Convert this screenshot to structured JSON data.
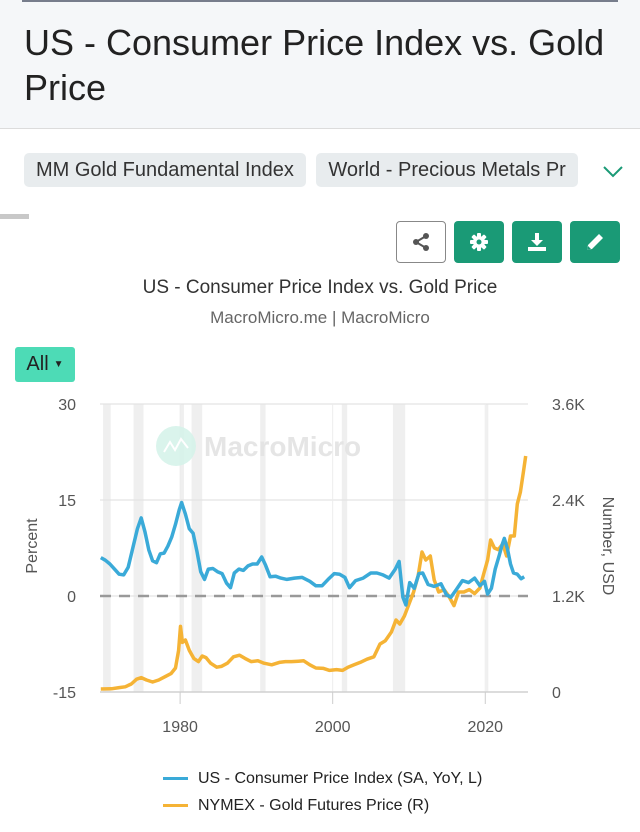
{
  "header": {
    "title": "US - Consumer Price Index vs. Gold Price"
  },
  "tags": [
    {
      "label": "MM Gold Fundamental Index"
    },
    {
      "label": "World - Precious Metals Pr"
    }
  ],
  "toolbar": {
    "share_icon": "share-icon",
    "settings_icon": "gear-icon",
    "download_icon": "download-icon",
    "edit_icon": "pencil-icon"
  },
  "colors": {
    "accent": "#1a9a76",
    "range_button": "#4ddbb6",
    "cpi_line": "#3aaad8",
    "gold_line": "#f5b335"
  },
  "range_selector": {
    "selected": "All"
  },
  "chart_data": {
    "type": "line",
    "title": "US - Consumer Price Index vs. Gold Price",
    "subtitle": "MacroMicro.me | MacroMicro",
    "watermark": "MacroMicro",
    "xlabel": "",
    "x_ticks": [
      "1980",
      "2000",
      "2020"
    ],
    "xlim": [
      1969.5,
      2025.6
    ],
    "y_left": {
      "label": "Percent",
      "ticks": [
        "30",
        "15",
        "0",
        "-15"
      ],
      "range": [
        -15,
        30
      ]
    },
    "y_right": {
      "label": "Number, USD",
      "ticks": [
        "3.6K",
        "2.4K",
        "1.2K",
        "0"
      ],
      "range": [
        0,
        3600
      ]
    },
    "zero_line": {
      "axis": "left",
      "value": 0,
      "style": "dashed"
    },
    "grid": true,
    "legend_position": "bottom",
    "recessions": [
      [
        1969.9,
        1970.9
      ],
      [
        1973.9,
        1975.2
      ],
      [
        1980.0,
        1980.5
      ],
      [
        1981.5,
        1982.9
      ],
      [
        1990.5,
        1991.2
      ],
      [
        2001.2,
        2001.9
      ],
      [
        2007.9,
        2009.5
      ],
      [
        2020.1,
        2020.4
      ]
    ],
    "series": [
      {
        "name": "US - Consumer Price Index (SA, YoY, L)",
        "axis": "left",
        "x": [
          1969.6,
          1970.2,
          1970.8,
          1971.4,
          1972.0,
          1972.6,
          1973.2,
          1973.8,
          1974.4,
          1974.9,
          1975.4,
          1975.9,
          1976.4,
          1976.9,
          1977.4,
          1977.9,
          1978.4,
          1978.9,
          1979.4,
          1979.9,
          1980.2,
          1980.7,
          1981.2,
          1981.7,
          1982.2,
          1982.7,
          1983.2,
          1983.7,
          1984.3,
          1984.9,
          1985.5,
          1986.1,
          1986.6,
          1987.1,
          1987.7,
          1988.3,
          1988.9,
          1989.5,
          1990.1,
          1990.7,
          1991.2,
          1991.8,
          1992.5,
          1993.2,
          1994.0,
          1995.0,
          1996.0,
          1997.0,
          1997.8,
          1998.6,
          1999.4,
          2000.2,
          2000.9,
          2001.6,
          2002.2,
          2003.0,
          2004.0,
          2005.0,
          2005.8,
          2006.6,
          2007.4,
          2008.2,
          2008.7,
          2009.2,
          2009.6,
          2010.1,
          2010.7,
          2011.3,
          2011.8,
          2012.5,
          2013.3,
          2014.2,
          2014.9,
          2015.5,
          2016.2,
          2017.0,
          2017.8,
          2018.6,
          2019.3,
          2019.9,
          2020.3,
          2020.8,
          2021.3,
          2021.8,
          2022.2,
          2022.5,
          2022.9,
          2023.3,
          2023.7,
          2024.2,
          2024.7,
          2025.1
        ],
        "values": [
          6.0,
          5.6,
          5.0,
          4.2,
          3.4,
          3.3,
          4.5,
          7.5,
          10.5,
          12.2,
          10.0,
          7.2,
          5.5,
          5.2,
          6.6,
          6.7,
          7.8,
          9.2,
          11.2,
          13.5,
          14.6,
          12.8,
          10.5,
          9.8,
          7.0,
          3.8,
          2.6,
          4.2,
          4.3,
          3.8,
          3.5,
          2.0,
          1.3,
          3.6,
          4.2,
          4.0,
          4.7,
          5.0,
          5.0,
          6.1,
          4.8,
          3.0,
          3.1,
          2.8,
          2.6,
          2.8,
          2.9,
          2.3,
          1.6,
          1.6,
          2.6,
          3.5,
          3.4,
          2.9,
          1.3,
          2.4,
          2.8,
          3.6,
          3.6,
          3.3,
          2.8,
          4.2,
          5.4,
          -0.2,
          -1.4,
          2.1,
          1.2,
          3.5,
          3.6,
          1.8,
          1.5,
          1.9,
          0.2,
          -0.2,
          1.0,
          2.4,
          2.1,
          2.8,
          1.6,
          2.3,
          0.3,
          1.2,
          4.2,
          6.2,
          8.0,
          9.0,
          7.4,
          5.0,
          3.6,
          3.4,
          2.7,
          3.0
        ]
      },
      {
        "name": "NYMEX - Gold Futures Price (R)",
        "axis": "right",
        "x": [
          1969.6,
          1971.0,
          1972.0,
          1972.8,
          1973.6,
          1974.3,
          1974.9,
          1975.6,
          1976.4,
          1977.2,
          1978.0,
          1978.8,
          1979.4,
          1979.8,
          1980.05,
          1980.3,
          1980.7,
          1981.2,
          1981.8,
          1982.4,
          1982.9,
          1983.4,
          1984.0,
          1984.8,
          1985.4,
          1986.2,
          1987.0,
          1987.8,
          1988.5,
          1989.3,
          1990.2,
          1991.0,
          1992.0,
          1993.0,
          1993.8,
          1994.6,
          1995.5,
          1996.2,
          1997.0,
          1997.8,
          1998.8,
          1999.6,
          2000.5,
          2001.3,
          2002.0,
          2002.8,
          2003.6,
          2004.5,
          2005.4,
          2006.2,
          2006.9,
          2007.7,
          2008.3,
          2008.8,
          2009.4,
          2010.0,
          2010.6,
          2011.2,
          2011.7,
          2012.2,
          2012.8,
          2013.3,
          2013.9,
          2014.6,
          2015.2,
          2015.9,
          2016.5,
          2017.2,
          2017.9,
          2018.6,
          2019.3,
          2019.8,
          2020.3,
          2020.7,
          2021.2,
          2021.7,
          2022.3,
          2022.8,
          2023.3,
          2023.8,
          2024.2,
          2024.6,
          2025.0,
          2025.3
        ],
        "values": [
          38,
          40,
          55,
          65,
          100,
          160,
          180,
          150,
          125,
          150,
          190,
          230,
          300,
          520,
          820,
          620,
          650,
          520,
          420,
          380,
          450,
          430,
          360,
          310,
          320,
          360,
          440,
          460,
          420,
          380,
          390,
          360,
          340,
          370,
          380,
          380,
          385,
          390,
          340,
          300,
          295,
          270,
          280,
          270,
          310,
          340,
          370,
          410,
          440,
          600,
          640,
          750,
          900,
          850,
          950,
          1100,
          1250,
          1450,
          1750,
          1650,
          1700,
          1400,
          1250,
          1280,
          1200,
          1080,
          1250,
          1250,
          1280,
          1230,
          1300,
          1480,
          1650,
          1900,
          1800,
          1780,
          1850,
          1700,
          1950,
          1950,
          2350,
          2500,
          2750,
          2950
        ]
      }
    ]
  },
  "legend": [
    {
      "label": "US - Consumer Price Index (SA, YoY, L)"
    },
    {
      "label": "NYMEX - Gold Futures Price (R)"
    }
  ]
}
